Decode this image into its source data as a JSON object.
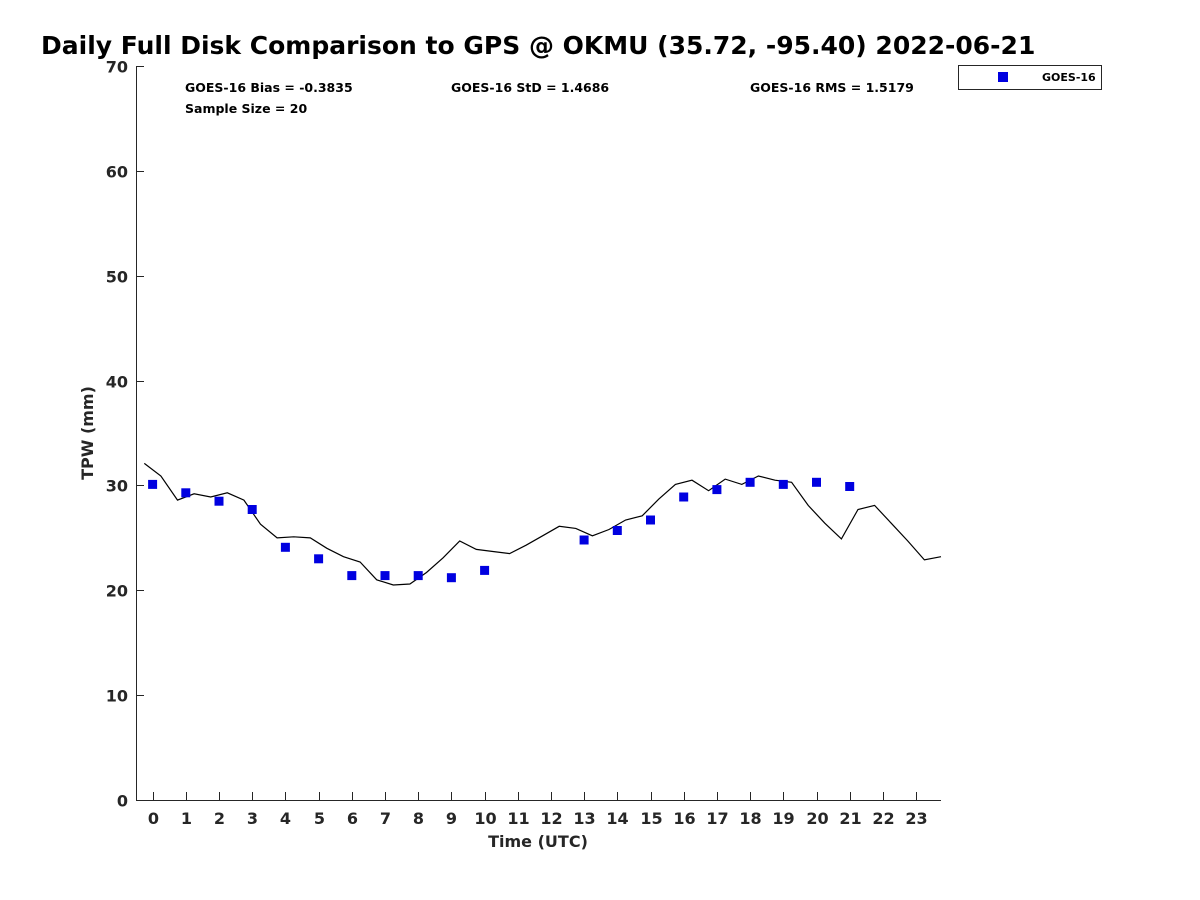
{
  "chart_data": {
    "type": "scatter",
    "title": "Daily Full Disk Comparison to GPS @ OKMU (35.72, -95.40) 2022-06-21",
    "xlabel": "Time (UTC)",
    "ylabel": "TPW (mm)",
    "xlim": [
      -0.5,
      23.75
    ],
    "ylim": [
      0,
      70
    ],
    "x_ticks": [
      0,
      1,
      2,
      3,
      4,
      5,
      6,
      7,
      8,
      9,
      10,
      11,
      12,
      13,
      14,
      15,
      16,
      17,
      18,
      19,
      20,
      21,
      22,
      23
    ],
    "y_ticks": [
      0,
      10,
      20,
      30,
      40,
      50,
      60,
      70
    ],
    "grid": false,
    "legend_position": "outside-top-right",
    "stats": {
      "bias": "GOES-16 Bias = -0.3835",
      "std": "GOES-16 StD = 1.4686",
      "rms": "GOES-16 RMS = 1.5179",
      "sample": "Sample Size = 20"
    },
    "series": [
      {
        "name": "GOES-16",
        "kind": "marker",
        "marker": "square",
        "color": "#0000e0",
        "x": [
          0,
          1,
          2,
          3,
          4,
          5,
          6,
          7,
          8,
          9,
          10,
          13,
          14,
          15,
          16,
          17,
          18,
          19,
          20,
          21
        ],
        "y": [
          30.1,
          29.3,
          28.5,
          27.7,
          24.1,
          23.0,
          21.4,
          21.4,
          21.4,
          21.2,
          21.9,
          24.8,
          25.7,
          26.7,
          28.9,
          29.6,
          30.3,
          30.1,
          30.3,
          29.9
        ]
      },
      {
        "kind": "line",
        "color": "#000000",
        "x": [
          -0.25,
          0.25,
          0.75,
          1.25,
          1.75,
          2.25,
          2.75,
          3.25,
          3.75,
          4.25,
          4.75,
          5.25,
          5.75,
          6.25,
          6.75,
          7.25,
          7.75,
          8.25,
          8.75,
          9.25,
          9.75,
          10.25,
          10.75,
          11.25,
          11.75,
          12.25,
          12.75,
          13.25,
          13.75,
          14.25,
          14.75,
          15.25,
          15.75,
          16.25,
          16.75,
          17.25,
          17.75,
          18.25,
          18.75,
          19.25,
          19.75,
          20.25,
          20.75,
          21.25,
          21.75,
          22.25,
          22.75,
          23.25,
          23.75
        ],
        "y": [
          32.1,
          30.9,
          28.6,
          29.2,
          28.9,
          29.3,
          28.6,
          26.3,
          25.0,
          25.1,
          25.0,
          24.0,
          23.2,
          22.7,
          21.0,
          20.5,
          20.6,
          21.7,
          23.1,
          24.7,
          23.9,
          23.7,
          23.5,
          24.3,
          25.2,
          26.1,
          25.9,
          25.2,
          25.8,
          26.7,
          27.1,
          28.7,
          30.1,
          30.5,
          29.5,
          30.6,
          30.1,
          30.9,
          30.5,
          30.3,
          28.1,
          26.4,
          24.9,
          27.7,
          28.1,
          26.4,
          24.7,
          22.9,
          23.2
        ]
      }
    ]
  }
}
